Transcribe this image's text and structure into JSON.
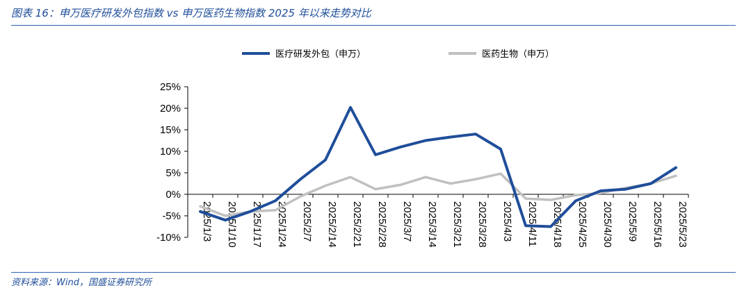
{
  "header": {
    "title": "图表 16：申万医疗研发外包指数 vs 申万医药生物指数 2025 年以来走势对比"
  },
  "footer": {
    "source": "资料来源：Wind，国盛证券研究所"
  },
  "colors": {
    "accent": "#1f4e9a",
    "rule": "#2f64b4"
  },
  "chart_data": {
    "type": "line",
    "title": "",
    "xlabel": "",
    "ylabel": "",
    "x": [
      "2025/1/3",
      "2025/1/10",
      "2025/1/17",
      "2025/1/24",
      "2025/2/7",
      "2025/2/14",
      "2025/2/21",
      "2025/2/28",
      "2025/3/7",
      "2025/3/14",
      "2025/3/21",
      "2025/3/28",
      "2025/4/3",
      "2025/4/11",
      "2025/4/18",
      "2025/4/25",
      "2025/4/30",
      "2025/5/9",
      "2025/5/16",
      "2025/5/23"
    ],
    "ylim": [
      -10,
      25
    ],
    "yticks": [
      -10,
      -5,
      0,
      5,
      10,
      15,
      20,
      25
    ],
    "ytick_labels": [
      "-10%",
      "-5%",
      "0%",
      "5%",
      "10%",
      "15%",
      "20%",
      "25%"
    ],
    "legend_position": "top",
    "grid": false,
    "series": [
      {
        "name": "医疗研发外包（申万）",
        "color": "#1f4e9a",
        "values": [
          -4.0,
          -6.0,
          -4.0,
          -1.5,
          3.5,
          8.0,
          20.2,
          9.2,
          11.0,
          12.5,
          13.3,
          14.0,
          10.5,
          -7.3,
          -7.5,
          -1.5,
          0.8,
          1.2,
          2.5,
          6.2
        ]
      },
      {
        "name": "医药生物（申万）",
        "color": "#c0c0c0",
        "values": [
          -2.8,
          -5.0,
          -4.0,
          -3.7,
          -0.5,
          2.0,
          4.0,
          1.2,
          2.2,
          4.0,
          2.5,
          3.5,
          4.8,
          -1.0,
          -1.3,
          -0.2,
          0.3,
          1.5,
          2.5,
          4.3
        ]
      }
    ]
  }
}
